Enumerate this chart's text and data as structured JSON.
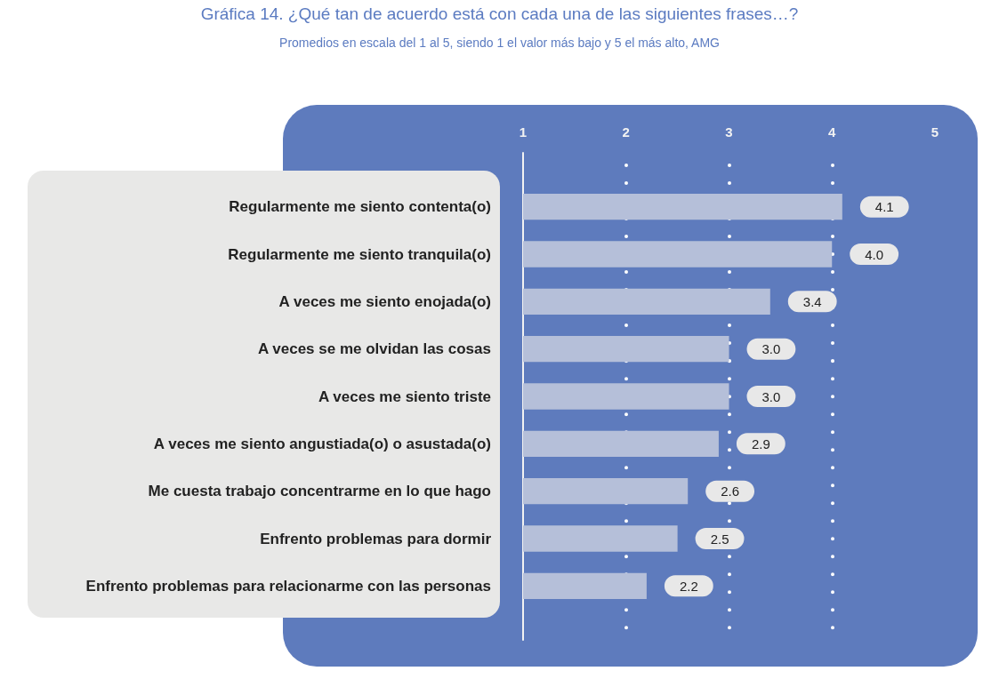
{
  "chart_data": {
    "type": "bar",
    "title": "Gráfica 14. ¿Qué tan de acuerdo está con cada una de las siguientes frases…?",
    "subtitle": "Promedios en escala del 1 al 5, siendo 1 el valor más bajo y 5 el más alto, AMG",
    "orientation": "horizontal",
    "categories": [
      "Regularmente me siento contenta(o)",
      "Regularmente me siento tranquila(o)",
      "A veces me siento enojada(o)",
      "A veces se me olvidan las cosas",
      "A veces me siento triste",
      "A veces me siento angustiada(o) o asustada(o)",
      "Me cuesta trabajo concentrarme en lo que hago",
      "Enfrento problemas para dormir",
      "Enfrento problemas para relacionarme con las personas"
    ],
    "values": [
      4.1,
      4.0,
      3.4,
      3.0,
      3.0,
      2.9,
      2.6,
      2.5,
      2.2
    ],
    "value_labels": [
      "4.1",
      "4.0",
      "3.4",
      "3.0",
      "3.0",
      "2.9",
      "2.6",
      "2.5",
      "2.2"
    ],
    "color": "#b5bfd9",
    "xlim": [
      1,
      5
    ],
    "xticks": [
      1,
      2,
      3,
      4,
      5
    ],
    "grid": "x"
  }
}
